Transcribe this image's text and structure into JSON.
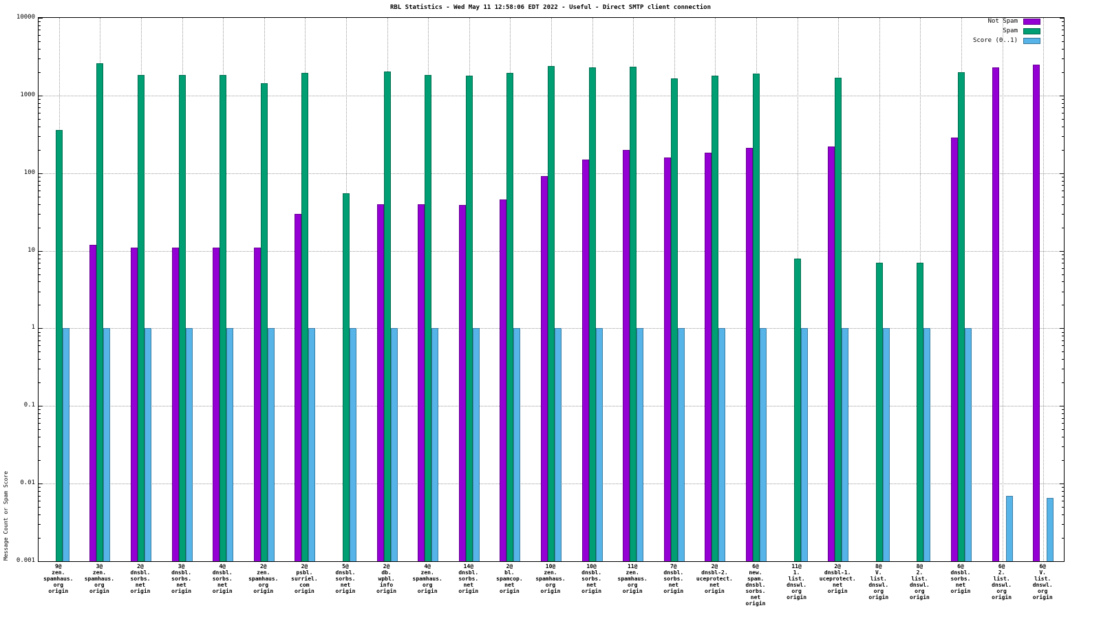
{
  "chart_data": {
    "type": "bar",
    "title": "RBL Statistics - Wed May 11 12:58:06 EDT 2022 - Useful - Direct SMTP client connection",
    "ylabel": "Message Count or Spam Score",
    "xlabel": "",
    "yscale": "log",
    "ylim": [
      0.001,
      10000
    ],
    "yticks": [
      {
        "v": 0.001,
        "label": "0.001"
      },
      {
        "v": 0.01,
        "label": "0.01"
      },
      {
        "v": 0.1,
        "label": "0.1"
      },
      {
        "v": 1,
        "label": "1"
      },
      {
        "v": 10,
        "label": "10"
      },
      {
        "v": 100,
        "label": "100"
      },
      {
        "v": 1000,
        "label": "1000"
      },
      {
        "v": 10000,
        "label": "10000"
      }
    ],
    "grid": true,
    "legend_position": "top-right",
    "categories": [
      [
        "9@",
        "zen.",
        "spamhaus.",
        "org",
        "origin"
      ],
      [
        "3@",
        "zen.",
        "spamhaus.",
        "org",
        "origin"
      ],
      [
        "2@",
        "dnsbl.",
        "sorbs.",
        "net",
        "origin"
      ],
      [
        "3@",
        "dnsbl.",
        "sorbs.",
        "net",
        "origin"
      ],
      [
        "4@",
        "dnsbl.",
        "sorbs.",
        "net",
        "origin"
      ],
      [
        "2@",
        "zen.",
        "spamhaus.",
        "org",
        "origin"
      ],
      [
        "2@",
        "psbl.",
        "surriel.",
        "com",
        "origin"
      ],
      [
        "5@",
        "dnsbl.",
        "sorbs.",
        "net",
        "origin"
      ],
      [
        "2@",
        "db.",
        "wpbl.",
        "info",
        "origin"
      ],
      [
        "4@",
        "zen.",
        "spamhaus.",
        "org",
        "origin"
      ],
      [
        "14@",
        "dnsbl.",
        "sorbs.",
        "net",
        "origin"
      ],
      [
        "2@",
        "bl.",
        "spamcop.",
        "net",
        "origin"
      ],
      [
        "10@",
        "zen.",
        "spamhaus.",
        "org",
        "origin"
      ],
      [
        "10@",
        "dnsbl.",
        "sorbs.",
        "net",
        "origin"
      ],
      [
        "11@",
        "zen.",
        "spamhaus.",
        "org",
        "origin"
      ],
      [
        "7@",
        "dnsbl.",
        "sorbs.",
        "net",
        "origin"
      ],
      [
        "2@",
        "dnsbl-2.",
        "uceprotect.",
        "net",
        "origin"
      ],
      [
        "6@",
        "new.",
        "spam.",
        "dnsbl.",
        "sorbs.",
        "net",
        "origin"
      ],
      [
        "11@",
        "1.",
        "list.",
        "dnswl.",
        "org",
        "origin"
      ],
      [
        "2@",
        "dnsbl-1.",
        "uceprotect.",
        "net",
        "origin"
      ],
      [
        "8@",
        "V.",
        "list.",
        "dnswl.",
        "org",
        "origin"
      ],
      [
        "8@",
        "2.",
        "list.",
        "dnswl.",
        "org",
        "origin"
      ],
      [
        "6@",
        "dnsbl.",
        "sorbs.",
        "net",
        "origin"
      ],
      [
        "6@",
        "2.",
        "list.",
        "dnswl.",
        "org",
        "origin"
      ],
      [
        "6@",
        "V.",
        "list.",
        "dnswl.",
        "org",
        "origin"
      ]
    ],
    "series": [
      {
        "name": "Not Spam",
        "color": "#9400d3",
        "values": [
          null,
          12,
          11,
          11,
          11,
          11,
          30,
          null,
          40,
          40,
          39,
          46,
          92,
          150,
          200,
          160,
          185,
          210,
          null,
          220,
          null,
          null,
          290,
          2300,
          2500
        ]
      },
      {
        "name": "Spam",
        "color": "#009e73",
        "values": [
          360,
          2600,
          1850,
          1850,
          1850,
          1450,
          1950,
          55,
          2050,
          1850,
          1800,
          1950,
          2400,
          2300,
          2350,
          1650,
          1800,
          1900,
          8,
          1700,
          7,
          7,
          2000,
          null,
          null
        ]
      },
      {
        "name": "Score (0..1)",
        "color": "#56b4e9",
        "values": [
          1,
          1,
          1,
          1,
          1,
          1,
          1,
          1,
          1,
          1,
          1,
          1,
          1,
          1,
          1,
          1,
          1,
          1,
          1,
          1,
          1,
          1,
          1,
          0.007,
          0.0065
        ]
      }
    ]
  }
}
